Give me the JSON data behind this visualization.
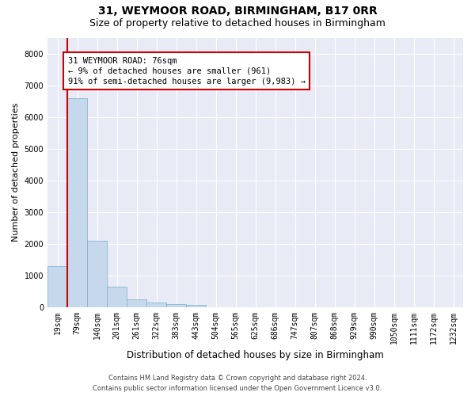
{
  "title_line1": "31, WEYMOOR ROAD, BIRMINGHAM, B17 0RR",
  "title_line2": "Size of property relative to detached houses in Birmingham",
  "xlabel": "Distribution of detached houses by size in Birmingham",
  "ylabel": "Number of detached properties",
  "footer_line1": "Contains HM Land Registry data © Crown copyright and database right 2024.",
  "footer_line2": "Contains public sector information licensed under the Open Government Licence v3.0.",
  "bar_labels": [
    "19sqm",
    "79sqm",
    "140sqm",
    "201sqm",
    "261sqm",
    "322sqm",
    "383sqm",
    "443sqm",
    "504sqm",
    "565sqm",
    "625sqm",
    "686sqm",
    "747sqm",
    "807sqm",
    "868sqm",
    "929sqm",
    "990sqm",
    "1050sqm",
    "1111sqm",
    "1172sqm",
    "1232sqm"
  ],
  "bar_values": [
    1300,
    6600,
    2080,
    650,
    250,
    130,
    95,
    70,
    0,
    0,
    0,
    0,
    0,
    0,
    0,
    0,
    0,
    0,
    0,
    0,
    0
  ],
  "bar_color": "#c6d9ec",
  "bar_edge_color": "#7aaecb",
  "annotation_text": "31 WEYMOOR ROAD: 76sqm\n← 9% of detached houses are smaller (961)\n91% of semi-detached houses are larger (9,983) →",
  "vline_color": "#cc0000",
  "annotation_box_edgecolor": "#cc0000",
  "ylim": [
    0,
    8500
  ],
  "yticks": [
    0,
    1000,
    2000,
    3000,
    4000,
    5000,
    6000,
    7000,
    8000
  ],
  "background_color": "#e8eaf6",
  "grid_color": "#ffffff",
  "title_fontsize": 10,
  "subtitle_fontsize": 9,
  "axis_label_fontsize": 8.5,
  "tick_fontsize": 7,
  "annotation_fontsize": 7.5,
  "footer_fontsize": 6,
  "ylabel_fontsize": 8
}
